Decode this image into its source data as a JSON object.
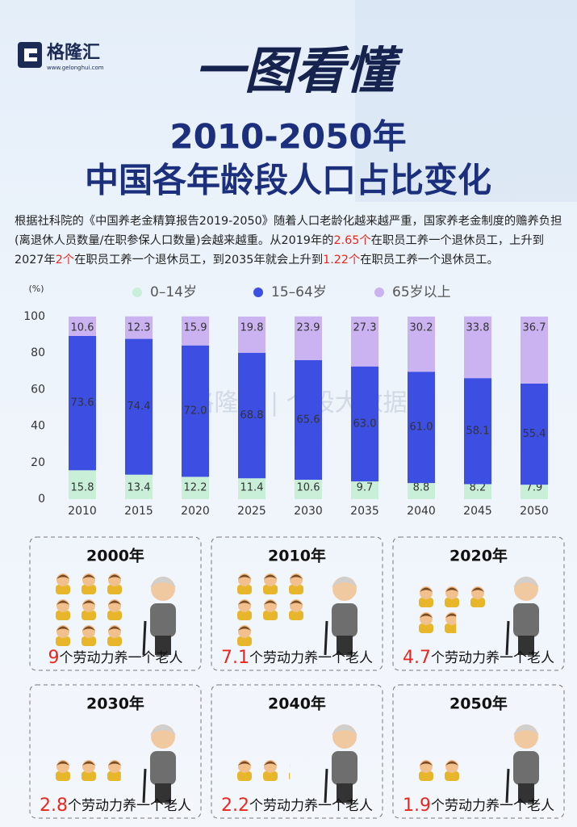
{
  "logo": {
    "name": "格隆汇",
    "url": "www.gelonghui.com"
  },
  "headline": "一图看懂",
  "title": [
    "2010-2050年",
    "中国各年龄段人口占比变化"
  ],
  "intro": [
    {
      "text": "根据社科院的《中国养老金精算报告2019-2050》随着人口老龄化越来越严重，国家养老金制度的赡养负担(离退休人员数量/在职参保人口数量)会越来越重。从2019年的"
    },
    {
      "text": "2.65个",
      "color": "#e8281e"
    },
    {
      "text": "在职员工养一个退休员工，上升到2027年"
    },
    {
      "text": "2个",
      "color": "#e8281e"
    },
    {
      "text": "在职员工养一个退休员工，到2035年就会上升到"
    },
    {
      "text": "1.22个",
      "color": "#e8281e"
    },
    {
      "text": "在职员工养一个退休员工。"
    }
  ],
  "chart_data": {
    "type": "bar",
    "stacked": true,
    "y_unit": "(%)",
    "categories": [
      "2010",
      "2015",
      "2020",
      "2025",
      "2030",
      "2035",
      "2040",
      "2045",
      "2050"
    ],
    "series": [
      {
        "name": "0–14岁",
        "color": "#c9efd9",
        "values": [
          15.8,
          13.4,
          12.2,
          11.4,
          10.6,
          9.7,
          8.8,
          8.2,
          7.9
        ]
      },
      {
        "name": "15–64岁",
        "color": "#3c4fe2",
        "values": [
          73.6,
          74.4,
          72.0,
          68.8,
          65.6,
          63.0,
          61.0,
          58.1,
          55.4
        ],
        "value_labels": [
          "73.6",
          "74.4",
          "72.0",
          "68.8",
          "65.6",
          "63.0",
          "61.0",
          "58.1",
          "55.4"
        ]
      },
      {
        "name": "65岁以上",
        "color": "#cbb3f2",
        "values": [
          10.6,
          12.3,
          15.9,
          19.8,
          23.9,
          27.3,
          30.2,
          33.8,
          36.7
        ]
      }
    ],
    "ylim": [
      0,
      100
    ],
    "yticks": [
      0,
      20,
      40,
      60,
      80,
      100
    ],
    "grid": false
  },
  "watermark": "格隆汇 | 个股大数据",
  "panels": [
    {
      "year": "2000年",
      "ratio": 9,
      "text": "个劳动力养一个老人"
    },
    {
      "year": "2010年",
      "ratio": 7.1,
      "text": "个劳动力养一个老人"
    },
    {
      "year": "2020年",
      "ratio": 4.7,
      "text": "个劳动力养一个老人"
    },
    {
      "year": "2030年",
      "ratio": 2.8,
      "text": "个劳动力养一个老人"
    },
    {
      "year": "2040年",
      "ratio": 2.2,
      "text": "个劳动力养一个老人"
    },
    {
      "year": "2050年",
      "ratio": 1.9,
      "text": "个劳动力养一个老人"
    }
  ]
}
